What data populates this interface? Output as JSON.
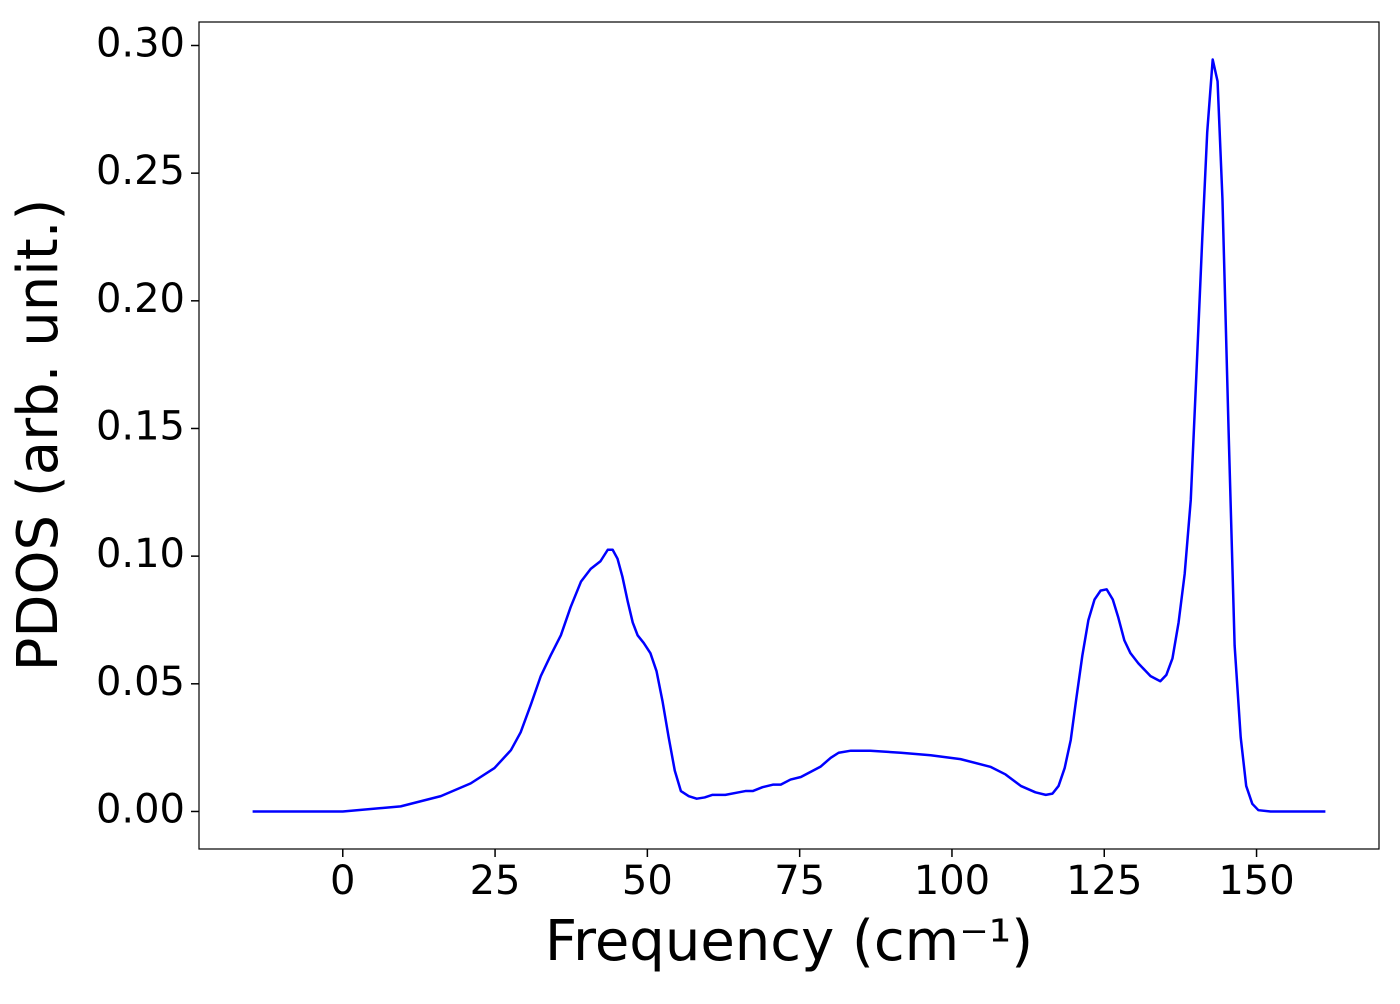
{
  "chart_data": {
    "type": "line",
    "xlabel": "Frequency (cm⁻¹)",
    "ylabel": "PDOS (arb. unit.)",
    "xlim": [
      -23.6,
      170.1
    ],
    "ylim": [
      -0.0147,
      0.3092
    ],
    "xticks": [
      0,
      25,
      50,
      75,
      100,
      125,
      150
    ],
    "yticks": [
      {
        "value": 0,
        "label": "0.00"
      },
      {
        "value": 0.05,
        "label": "0.05"
      },
      {
        "value": 0.1,
        "label": "0.10"
      },
      {
        "value": 0.15,
        "label": "0.15"
      },
      {
        "value": 0.2,
        "label": "0.20"
      },
      {
        "value": 0.25,
        "label": "0.25"
      },
      {
        "value": 0.3,
        "label": "0.30"
      }
    ],
    "grid": false,
    "series": [
      {
        "color": "#0000ff",
        "x": [
          -14.8,
          0,
          9.5,
          16.1,
          21,
          24.9,
          27.6,
          29.2,
          30.9,
          32.5,
          34.1,
          35.8,
          37.4,
          39.1,
          40.7,
          42.3,
          43.5,
          44.3,
          45.1,
          45.9,
          46.8,
          47.6,
          48.4,
          49.4,
          50.5,
          51.5,
          52.5,
          53.5,
          54.5,
          55.5,
          56.8,
          58.1,
          59.4,
          60.7,
          62.8,
          65,
          66.1,
          67.3,
          68.9,
          70.6,
          71.9,
          73.5,
          75.2,
          76.8,
          78.4,
          80.1,
          81.4,
          83.4,
          86.6,
          91.6,
          96.5,
          101.4,
          106.3,
          108.8,
          111.3,
          113.7,
          115.4,
          116.5,
          117.5,
          118.5,
          119.5,
          120.4,
          121.4,
          122.4,
          123.4,
          124.4,
          125.4,
          126.4,
          127.3,
          128.3,
          129.3,
          130.6,
          132.6,
          134.2,
          135.2,
          136.2,
          137.2,
          138.2,
          139.2,
          140.1,
          141.1,
          141.9,
          142.8,
          143.6,
          144.4,
          145.4,
          146.4,
          147.4,
          148.3,
          149.3,
          150.3,
          152.3,
          161.3
        ],
        "values": [
          0,
          0,
          0.002,
          0.006,
          0.011,
          0.017,
          0.024,
          0.031,
          0.042,
          0.053,
          0.061,
          0.069,
          0.08,
          0.09,
          0.095,
          0.098,
          0.1025,
          0.1025,
          0.099,
          0.092,
          0.082,
          0.074,
          0.069,
          0.066,
          0.062,
          0.055,
          0.043,
          0.029,
          0.016,
          0.008,
          0.006,
          0.005,
          0.0055,
          0.0065,
          0.0065,
          0.0075,
          0.008,
          0.008,
          0.0095,
          0.0105,
          0.0105,
          0.0125,
          0.0135,
          0.0155,
          0.0175,
          0.021,
          0.023,
          0.0238,
          0.0238,
          0.023,
          0.022,
          0.0205,
          0.0175,
          0.0145,
          0.01,
          0.0075,
          0.0065,
          0.007,
          0.01,
          0.017,
          0.028,
          0.044,
          0.061,
          0.075,
          0.083,
          0.0865,
          0.087,
          0.083,
          0.076,
          0.067,
          0.062,
          0.058,
          0.053,
          0.051,
          0.0535,
          0.06,
          0.074,
          0.093,
          0.122,
          0.17,
          0.225,
          0.266,
          0.2945,
          0.286,
          0.24,
          0.15,
          0.065,
          0.029,
          0.01,
          0.003,
          0.0005,
          0,
          0
        ]
      }
    ]
  }
}
